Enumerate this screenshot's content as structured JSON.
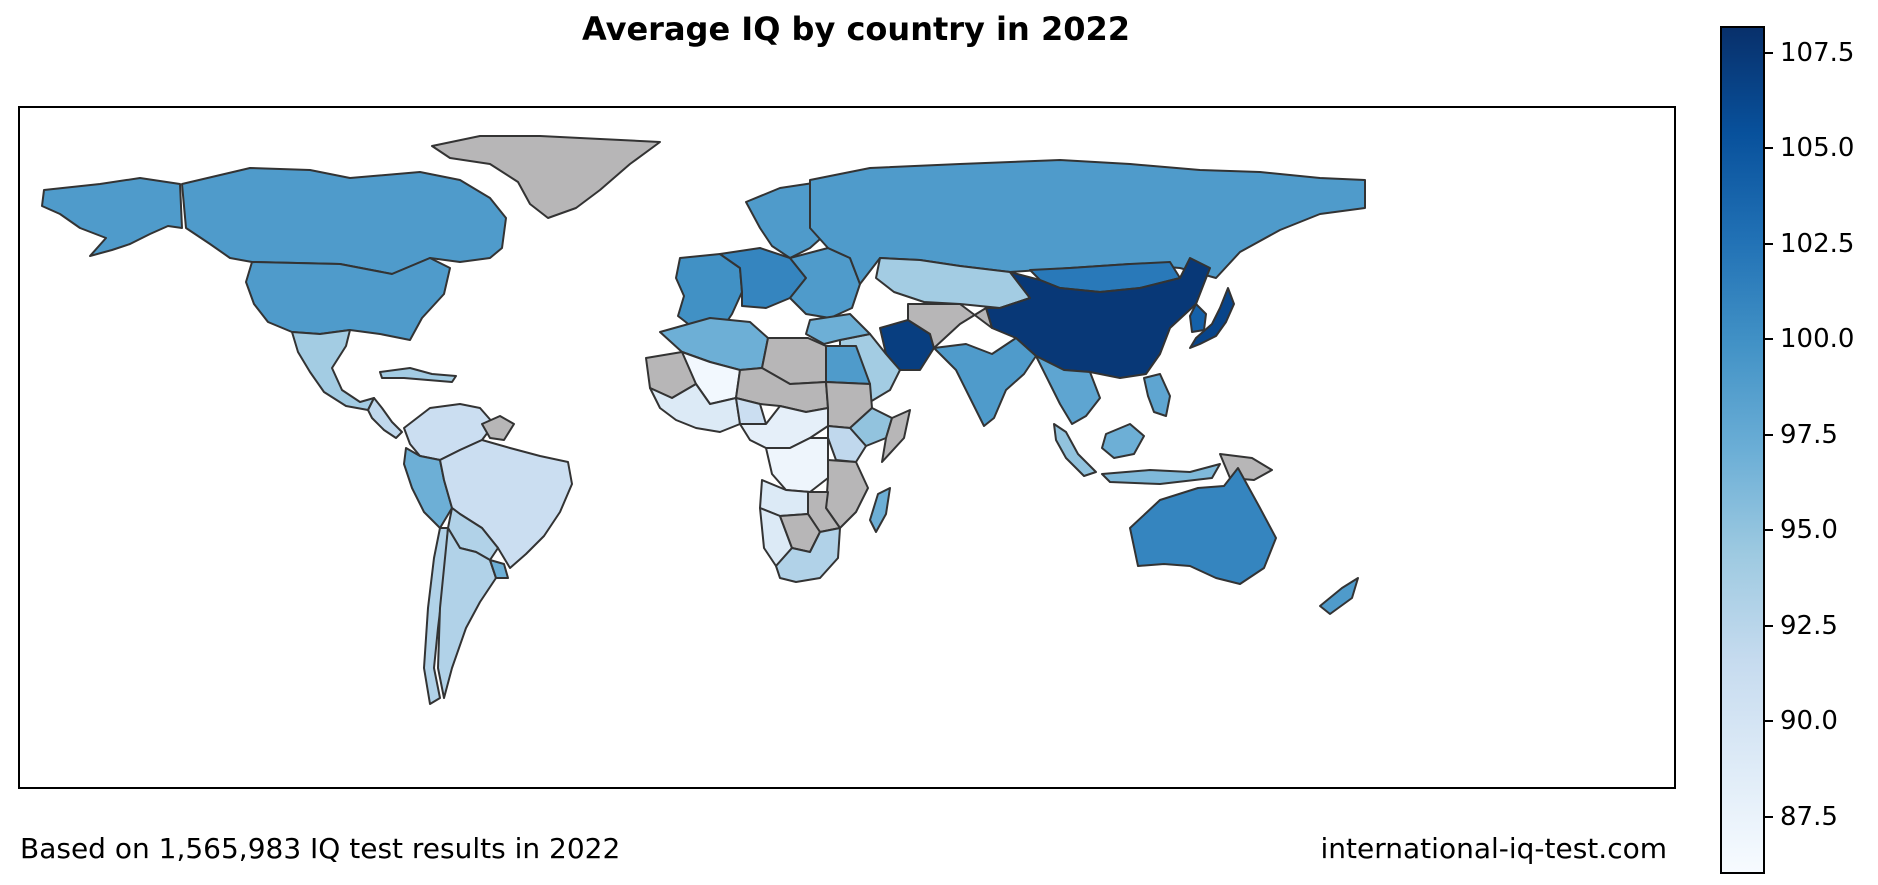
{
  "title": "Average IQ by country in 2022",
  "footer": {
    "left": "Based on 1,565,983 IQ test results in 2022",
    "right": "international-iq-test.com"
  },
  "colorbar": {
    "min": 86.0,
    "max": 108.2,
    "ticks": [
      "87.5",
      "90.0",
      "92.5",
      "95.0",
      "97.5",
      "100.0",
      "102.5",
      "105.0",
      "107.5"
    ]
  },
  "colors": {
    "no_data": "#b7b6b7",
    "border": "#333333",
    "scale": [
      "#f7fbff",
      "#deebf7",
      "#c6dbef",
      "#9ecae1",
      "#6baed6",
      "#4292c6",
      "#2171b5",
      "#08519c",
      "#08306b"
    ]
  },
  "regions": [
    {
      "name": "Alaska",
      "iq": 99.0
    },
    {
      "name": "Canada",
      "iq": 99.0
    },
    {
      "name": "United States",
      "iq": 99.0
    },
    {
      "name": "Greenland",
      "iq": null
    },
    {
      "name": "Mexico",
      "iq": 94.0
    },
    {
      "name": "Central America",
      "iq": 92.0
    },
    {
      "name": "Colombia / Venezuela",
      "iq": 91.0
    },
    {
      "name": "Guianas",
      "iq": null
    },
    {
      "name": "Peru / Ecuador",
      "iq": 97.0
    },
    {
      "name": "Brazil",
      "iq": 91.0
    },
    {
      "name": "Bolivia / Paraguay",
      "iq": 93.0
    },
    {
      "name": "Chile",
      "iq": 93.0
    },
    {
      "name": "Argentina",
      "iq": 93.0
    },
    {
      "name": "Uruguay",
      "iq": 97.0
    },
    {
      "name": "Scandinavia",
      "iq": 99.0
    },
    {
      "name": "Western Europe",
      "iq": 100.0
    },
    {
      "name": "Central Europe",
      "iq": 101.0
    },
    {
      "name": "Eastern Europe",
      "iq": 99.0
    },
    {
      "name": "Russia",
      "iq": 99.0
    },
    {
      "name": "Kazakhstan",
      "iq": 94.0
    },
    {
      "name": "Mongolia",
      "iq": 102.0
    },
    {
      "name": "China",
      "iq": 107.5
    },
    {
      "name": "Korea",
      "iq": 104.0
    },
    {
      "name": "Japan",
      "iq": 106.5
    },
    {
      "name": "Iran",
      "iq": 107.0
    },
    {
      "name": "Afghanistan / Central Asia",
      "iq": null
    },
    {
      "name": "Saudi Arabia",
      "iq": 94.0
    },
    {
      "name": "Middle East",
      "iq": 97.0
    },
    {
      "name": "India",
      "iq": 99.0
    },
    {
      "name": "Southeast Asia",
      "iq": 98.0
    },
    {
      "name": "Malay Peninsula / Sumatra",
      "iq": 95.0
    },
    {
      "name": "Borneo",
      "iq": 97.0
    },
    {
      "name": "Indonesia",
      "iq": 96.0
    },
    {
      "name": "Papua New Guinea",
      "iq": null
    },
    {
      "name": "Philippines",
      "iq": 98.0
    },
    {
      "name": "Australia",
      "iq": 101.0
    },
    {
      "name": "New Zealand",
      "iq": 99.0
    },
    {
      "name": "Algeria / Morocco",
      "iq": 97.0
    },
    {
      "name": "Libya",
      "iq": null
    },
    {
      "name": "Egypt",
      "iq": 99.0
    },
    {
      "name": "Mauritania / Sahel",
      "iq": null
    },
    {
      "name": "Mali",
      "iq": 86.5
    },
    {
      "name": "Niger / Chad",
      "iq": null
    },
    {
      "name": "Sudan",
      "iq": null
    },
    {
      "name": "West Africa",
      "iq": 89.0
    },
    {
      "name": "Nigeria",
      "iq": 91.0
    },
    {
      "name": "Ethiopia",
      "iq": 95.0
    },
    {
      "name": "Somalia / Horn",
      "iq": null
    },
    {
      "name": "Central Africa",
      "iq": 88.0
    },
    {
      "name": "DR Congo",
      "iq": 87.0
    },
    {
      "name": "Kenya / Uganda",
      "iq": 92.0
    },
    {
      "name": "Tanzania / Mozambique",
      "iq": null
    },
    {
      "name": "Angola",
      "iq": 89.0
    },
    {
      "name": "Namibia",
      "iq": 89.0
    },
    {
      "name": "Zambia / Zimbabwe",
      "iq": null
    },
    {
      "name": "Botswana",
      "iq": null
    },
    {
      "name": "South Africa",
      "iq": 93.0
    },
    {
      "name": "Madagascar",
      "iq": 97.0
    },
    {
      "name": "Cuba / Caribbean",
      "iq": 94.0
    }
  ]
}
